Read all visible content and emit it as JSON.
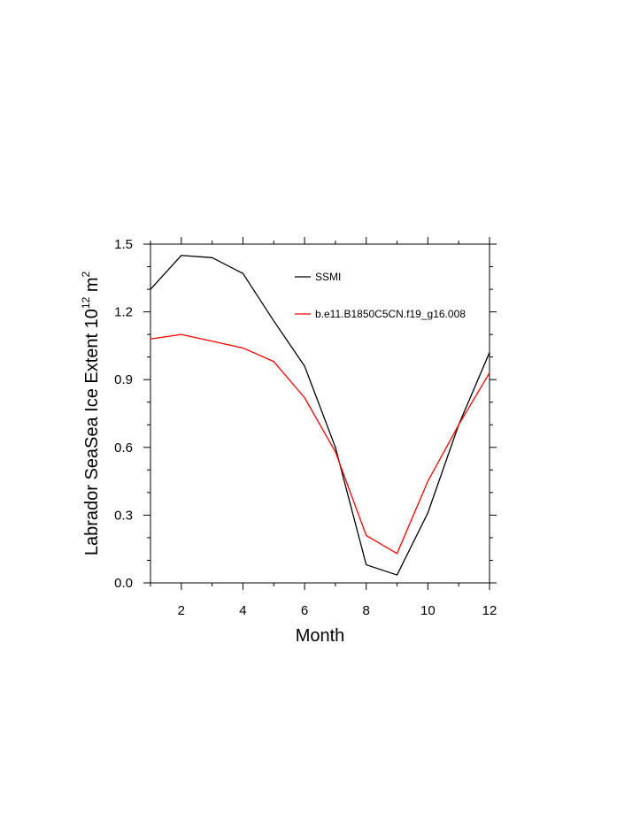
{
  "chart_data": {
    "type": "line",
    "x": [
      1,
      2,
      3,
      4,
      5,
      6,
      7,
      8,
      9,
      10,
      11,
      12
    ],
    "series": [
      {
        "name": "SSMI",
        "color": "#000000",
        "values": [
          1.3,
          1.45,
          1.44,
          1.37,
          1.16,
          0.96,
          0.6,
          0.08,
          0.035,
          0.31,
          0.7,
          1.02
        ]
      },
      {
        "name": "b.e11.B1850C5CN.f19_g16.008",
        "color": "#ff0000",
        "values": [
          1.08,
          1.1,
          1.07,
          1.04,
          0.98,
          0.82,
          0.58,
          0.21,
          0.13,
          0.45,
          0.7,
          0.93
        ]
      }
    ],
    "xlabel": "Month",
    "ylabel": {
      "main": "Labrador SeaSea Ice Extent 10",
      "exponent": "12",
      "unit": " m",
      "unit_exponent": "2"
    },
    "xlim": [
      1,
      12
    ],
    "ylim": [
      0,
      1.5
    ],
    "xticks": [
      2,
      4,
      6,
      8,
      10,
      12
    ],
    "yticks": [
      "0.0",
      "0.3",
      "0.6",
      "0.9",
      "1.2",
      "1.5"
    ],
    "legend_position": "top-right",
    "grid": false
  }
}
